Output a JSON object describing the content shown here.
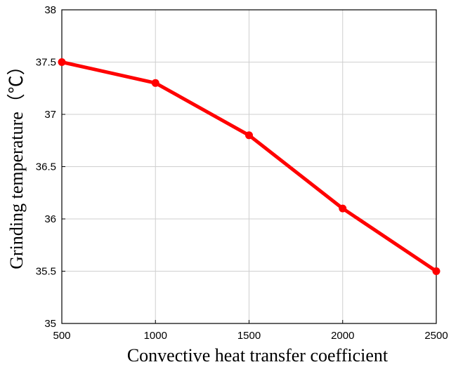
{
  "chart_data": {
    "type": "line",
    "x": [
      500,
      1000,
      1500,
      2000,
      2500
    ],
    "series": [
      {
        "values": [
          37.5,
          37.3,
          36.8,
          36.1,
          35.5
        ]
      }
    ],
    "xlabel": "Convective heat transfer coefficient",
    "ylabel": "Grinding temperature（℃）",
    "xlim": [
      500,
      2500
    ],
    "ylim": [
      35,
      38
    ],
    "x_ticks": [
      "500",
      "1000",
      "1500",
      "2000",
      "2500"
    ],
    "y_ticks": [
      "35",
      "35.5",
      "36",
      "36.5",
      "37",
      "37.5",
      "38"
    ],
    "grid": true,
    "line_color": "#ff0000"
  }
}
